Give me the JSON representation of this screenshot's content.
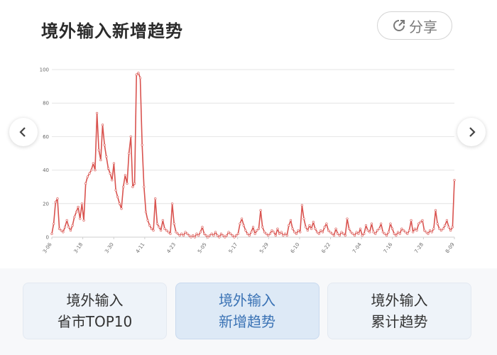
{
  "header": {
    "title": "境外输入新增趋势",
    "share_label": "分享"
  },
  "icons": {
    "share": "share-icon",
    "prev": "chevron-left-icon",
    "next": "chevron-right-icon"
  },
  "colors": {
    "line": "#d9534f",
    "point_fill": "#ffffff",
    "active_tab_text": "#3b73b5"
  },
  "tabs": [
    {
      "line1": "境外输入",
      "line2": "省市TOP10",
      "active": false
    },
    {
      "line1": "境外输入",
      "line2": "新增趋势",
      "active": true
    },
    {
      "line1": "境外输入",
      "line2": "累计趋势",
      "active": false
    }
  ],
  "chart_data": {
    "type": "line",
    "title": "境外输入新增趋势",
    "xlabel": "",
    "ylabel": "",
    "ylim": [
      0,
      100
    ],
    "yticks": [
      0,
      20,
      40,
      60,
      80,
      100
    ],
    "grid": true,
    "legend": "none",
    "x_ticks": [
      "3-06",
      "3-18",
      "3-30",
      "4-11",
      "4-23",
      "5-05",
      "5-17",
      "5-29",
      "6-10",
      "6-22",
      "7-04",
      "7-16",
      "7-28",
      "8-09"
    ],
    "start_label": "3-06",
    "end_label": "8-09",
    "series": [
      {
        "name": "",
        "values": [
          2,
          8,
          21,
          23,
          5,
          4,
          3,
          6,
          10,
          6,
          4,
          7,
          12,
          15,
          18,
          11,
          20,
          10,
          32,
          36,
          38,
          40,
          44,
          40,
          74,
          52,
          46,
          67,
          55,
          48,
          41,
          38,
          34,
          44,
          28,
          24,
          20,
          17,
          30,
          37,
          32,
          50,
          60,
          30,
          32,
          97,
          98,
          95,
          55,
          30,
          15,
          10,
          7,
          5,
          4,
          23,
          8,
          6,
          4,
          10,
          5,
          4,
          3,
          2,
          20,
          8,
          3,
          2,
          1,
          2,
          1,
          3,
          2,
          1,
          0,
          1,
          0,
          2,
          1,
          3,
          6,
          2,
          1,
          0,
          1,
          2,
          1,
          3,
          1,
          0,
          2,
          1,
          0,
          1,
          3,
          2,
          1,
          0,
          1,
          2,
          8,
          11,
          7,
          4,
          2,
          1,
          3,
          6,
          2,
          4,
          5,
          16,
          6,
          3,
          2,
          1,
          2,
          4,
          3,
          1,
          5,
          2,
          3,
          1,
          2,
          1,
          7,
          10,
          5,
          3,
          2,
          4,
          3,
          19,
          11,
          6,
          4,
          7,
          5,
          9,
          5,
          3,
          2,
          4,
          3,
          6,
          8,
          4,
          3,
          2,
          1,
          5,
          2,
          1,
          3,
          2,
          1,
          11,
          5,
          3,
          2,
          1,
          3,
          2,
          5,
          1,
          2,
          7,
          4,
          3,
          8,
          3,
          2,
          4,
          5,
          8,
          3,
          2,
          1,
          3,
          8,
          5,
          2,
          1,
          3,
          2,
          5,
          4,
          3,
          2,
          4,
          10,
          3,
          5,
          4,
          8,
          9,
          10,
          4,
          3,
          2,
          4,
          3,
          5,
          16,
          8,
          5,
          4,
          5,
          7,
          10,
          6,
          4,
          6,
          34
        ]
      }
    ]
  }
}
